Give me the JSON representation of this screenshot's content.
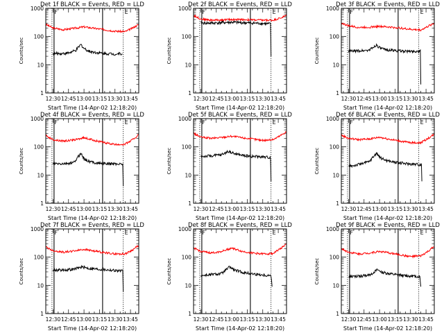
{
  "chart_data": [
    {
      "type": "line",
      "title": "Det 1f BLACK = Events, RED = LLD",
      "xlabel": "Start Time (14-Apr-02 12:18:20)",
      "ylabel": "Counts/sec",
      "xlim": [
        "12:23",
        "13:53"
      ],
      "ylim": [
        1,
        1000
      ],
      "y_scale": "log",
      "x_ticks": [
        "12:30",
        "12:45",
        "13:00",
        "13:15",
        "13:30",
        "13:45"
      ],
      "y_ticks": [
        "1",
        "10",
        "100",
        "1000"
      ],
      "markers": [
        {
          "time": "12:30",
          "label": "F"
        },
        {
          "time": "13:38",
          "label": "E"
        }
      ],
      "series": [
        {
          "color": "#ff0000",
          "x": [
            "12:23",
            "12:30",
            "12:40",
            "12:50",
            "13:00",
            "13:10",
            "13:20",
            "13:30",
            "13:40",
            "13:47",
            "13:53"
          ],
          "y": [
            270,
            200,
            175,
            195,
            220,
            195,
            175,
            155,
            150,
            200,
            270
          ]
        },
        {
          "color": "#000000",
          "x": [
            "12:30",
            "12:38",
            "12:45",
            "12:52",
            "12:57",
            "13:00",
            "13:05",
            "13:12",
            "13:20",
            "13:30",
            "13:37"
          ],
          "y": [
            25,
            25,
            26,
            32,
            52,
            38,
            30,
            27,
            25,
            24,
            25
          ]
        }
      ]
    },
    {
      "type": "line",
      "title": "Det 2f BLACK = Events, RED = LLD",
      "xlabel": "Start Time (14-Apr-02 12:18:20)",
      "ylabel": "Counts/sec",
      "xlim": [
        "12:23",
        "13:53"
      ],
      "ylim": [
        1,
        1000
      ],
      "y_scale": "log",
      "x_ticks": [
        "12:30",
        "12:45",
        "13:00",
        "13:15",
        "13:30",
        "13:45"
      ],
      "y_ticks": [
        "1",
        "10",
        "100",
        "1000"
      ],
      "markers": [
        {
          "time": "12:30",
          "label": "F"
        },
        {
          "time": "13:38",
          "label": "E"
        }
      ],
      "series": [
        {
          "color": "#ff0000",
          "x": [
            "12:23",
            "12:30",
            "12:40",
            "12:50",
            "13:00",
            "13:10",
            "13:20",
            "13:30",
            "13:40",
            "13:47",
            "13:53"
          ],
          "y": [
            560,
            420,
            380,
            390,
            400,
            400,
            390,
            380,
            380,
            450,
            560
          ]
        },
        {
          "color": "#000000",
          "x": [
            "12:30",
            "12:40",
            "12:50",
            "13:00",
            "13:10",
            "13:20",
            "13:30",
            "13:37",
            "13:38"
          ],
          "y": [
            300,
            300,
            310,
            320,
            310,
            300,
            290,
            280,
            20
          ]
        }
      ]
    },
    {
      "type": "line",
      "title": "Det 3f BLACK = Events, RED = LLD",
      "xlabel": "Start Time (14-Apr-02 12:18:20)",
      "ylabel": "Counts/sec",
      "xlim": [
        "12:23",
        "13:53"
      ],
      "ylim": [
        1,
        1000
      ],
      "y_scale": "log",
      "x_ticks": [
        "12:30",
        "12:45",
        "13:00",
        "13:15",
        "13:30",
        "13:45"
      ],
      "y_ticks": [
        "1",
        "10",
        "100",
        "1000"
      ],
      "markers": [
        {
          "time": "12:30",
          "label": "F"
        },
        {
          "time": "13:38",
          "label": "E"
        }
      ],
      "series": [
        {
          "color": "#ff0000",
          "x": [
            "12:23",
            "12:30",
            "12:40",
            "12:50",
            "13:00",
            "13:10",
            "13:20",
            "13:30",
            "13:40",
            "13:47",
            "13:53"
          ],
          "y": [
            300,
            240,
            210,
            215,
            230,
            215,
            200,
            180,
            170,
            230,
            300
          ]
        },
        {
          "color": "#000000",
          "x": [
            "12:30",
            "12:40",
            "12:50",
            "12:57",
            "13:00",
            "13:05",
            "13:15",
            "13:25",
            "13:35",
            "13:39",
            "13:40"
          ],
          "y": [
            30,
            31,
            33,
            50,
            40,
            34,
            32,
            30,
            30,
            30,
            2
          ]
        }
      ]
    },
    {
      "type": "line",
      "title": "Det 4f BLACK = Events, RED = LLD",
      "xlabel": "Start Time (14-Apr-02 12:18:20)",
      "ylabel": "Counts/sec",
      "xlim": [
        "12:23",
        "13:53"
      ],
      "ylim": [
        1,
        1000
      ],
      "y_scale": "log",
      "x_ticks": [
        "12:30",
        "12:45",
        "13:00",
        "13:15",
        "13:30",
        "13:45"
      ],
      "y_ticks": [
        "1",
        "10",
        "100",
        "1000"
      ],
      "markers": [
        {
          "time": "12:30",
          "label": "F"
        },
        {
          "time": "13:38",
          "label": "E"
        }
      ],
      "series": [
        {
          "color": "#ff0000",
          "x": [
            "12:23",
            "12:30",
            "12:40",
            "12:50",
            "13:00",
            "13:10",
            "13:20",
            "13:30",
            "13:40",
            "13:47",
            "13:53"
          ],
          "y": [
            250,
            180,
            160,
            175,
            210,
            170,
            140,
            120,
            125,
            180,
            270
          ]
        },
        {
          "color": "#000000",
          "x": [
            "12:30",
            "12:40",
            "12:50",
            "12:57",
            "13:00",
            "13:05",
            "13:15",
            "13:25",
            "13:35",
            "13:37",
            "13:38"
          ],
          "y": [
            25,
            25,
            27,
            60,
            38,
            30,
            26,
            25,
            25,
            25,
            4
          ]
        }
      ]
    },
    {
      "type": "line",
      "title": "Det 5f BLACK = Events, RED = LLD",
      "xlabel": "Start Time (14-Apr-02 12:18:20)",
      "ylabel": "Counts/sec",
      "xlim": [
        "12:23",
        "13:53"
      ],
      "ylim": [
        1,
        1000
      ],
      "y_scale": "log",
      "x_ticks": [
        "12:30",
        "12:45",
        "13:00",
        "13:15",
        "13:30",
        "13:45"
      ],
      "y_ticks": [
        "1",
        "10",
        "100",
        "1000"
      ],
      "markers": [
        {
          "time": "12:30",
          "label": "F"
        },
        {
          "time": "13:38",
          "label": "E"
        }
      ],
      "series": [
        {
          "color": "#ff0000",
          "x": [
            "12:23",
            "12:30",
            "12:40",
            "12:50",
            "13:00",
            "13:10",
            "13:20",
            "13:30",
            "13:40",
            "13:47",
            "13:53"
          ],
          "y": [
            300,
            220,
            200,
            215,
            240,
            210,
            190,
            170,
            180,
            250,
            350
          ]
        },
        {
          "color": "#000000",
          "x": [
            "12:30",
            "12:40",
            "12:50",
            "12:57",
            "13:02",
            "13:10",
            "13:20",
            "13:30",
            "13:37",
            "13:38"
          ],
          "y": [
            45,
            48,
            52,
            70,
            58,
            50,
            46,
            44,
            42,
            6
          ]
        }
      ]
    },
    {
      "type": "line",
      "title": "Det 6f BLACK = Events, RED = LLD",
      "xlabel": "Start Time (14-Apr-02 12:18:20)",
      "ylabel": "Counts/sec",
      "xlim": [
        "12:23",
        "13:53"
      ],
      "ylim": [
        1,
        1000
      ],
      "y_scale": "log",
      "x_ticks": [
        "12:30",
        "12:45",
        "13:00",
        "13:15",
        "13:30",
        "13:45"
      ],
      "y_ticks": [
        "1",
        "10",
        "100",
        "1000"
      ],
      "markers": [
        {
          "time": "12:30",
          "label": "F"
        },
        {
          "time": "13:38",
          "label": "E"
        }
      ],
      "series": [
        {
          "color": "#ff0000",
          "x": [
            "12:23",
            "12:30",
            "12:40",
            "12:50",
            "13:00",
            "13:10",
            "13:20",
            "13:30",
            "13:40",
            "13:47",
            "13:53"
          ],
          "y": [
            260,
            200,
            180,
            190,
            220,
            185,
            160,
            140,
            140,
            200,
            280
          ]
        },
        {
          "color": "#000000",
          "x": [
            "12:30",
            "12:40",
            "12:50",
            "12:57",
            "13:01",
            "13:08",
            "13:18",
            "13:28",
            "13:37",
            "13:40",
            "13:41"
          ],
          "y": [
            20,
            24,
            30,
            60,
            40,
            32,
            27,
            25,
            24,
            23,
            6
          ]
        }
      ]
    },
    {
      "type": "line",
      "title": "Det 7f BLACK = Events, RED = LLD",
      "xlabel": "Start Time (14-Apr-02 12:18:20)",
      "ylabel": "Counts/sec",
      "xlim": [
        "12:23",
        "13:53"
      ],
      "ylim": [
        1,
        1000
      ],
      "y_scale": "log",
      "x_ticks": [
        "12:30",
        "12:45",
        "13:00",
        "13:15",
        "13:30",
        "13:45"
      ],
      "y_ticks": [
        "1",
        "10",
        "100",
        "1000"
      ],
      "markers": [
        {
          "time": "12:30",
          "label": "F"
        },
        {
          "time": "13:38",
          "label": "E"
        }
      ],
      "series": [
        {
          "color": "#ff0000",
          "x": [
            "12:23",
            "12:30",
            "12:40",
            "12:50",
            "13:00",
            "13:10",
            "13:20",
            "13:30",
            "13:40",
            "13:47",
            "13:53"
          ],
          "y": [
            230,
            170,
            150,
            165,
            190,
            165,
            145,
            130,
            130,
            180,
            260
          ]
        },
        {
          "color": "#000000",
          "x": [
            "12:30",
            "12:40",
            "12:50",
            "12:58",
            "13:05",
            "13:15",
            "13:25",
            "13:33",
            "13:37",
            "13:38"
          ],
          "y": [
            35,
            35,
            37,
            45,
            40,
            37,
            35,
            33,
            32,
            6
          ]
        }
      ]
    },
    {
      "type": "line",
      "title": "Det 8f BLACK = Events, RED = LLD",
      "xlabel": "Start Time (14-Apr-02 12:18:20)",
      "ylabel": "Counts/sec",
      "xlim": [
        "12:23",
        "13:53"
      ],
      "ylim": [
        1,
        1000
      ],
      "y_scale": "log",
      "x_ticks": [
        "12:30",
        "12:45",
        "13:00",
        "13:15",
        "13:30",
        "13:45"
      ],
      "y_ticks": [
        "1",
        "10",
        "100",
        "1000"
      ],
      "markers": [
        {
          "time": "12:30",
          "label": "F"
        },
        {
          "time": "13:38",
          "label": "E"
        }
      ],
      "series": [
        {
          "color": "#ff0000",
          "x": [
            "12:23",
            "12:30",
            "12:40",
            "12:50",
            "13:00",
            "13:10",
            "13:20",
            "13:30",
            "13:40",
            "13:47",
            "13:53"
          ],
          "y": [
            210,
            160,
            140,
            160,
            210,
            160,
            140,
            130,
            135,
            200,
            290
          ]
        },
        {
          "color": "#000000",
          "x": [
            "12:30",
            "12:40",
            "12:50",
            "12:58",
            "13:03",
            "13:12",
            "13:22",
            "13:32",
            "13:38",
            "13:39"
          ],
          "y": [
            22,
            24,
            26,
            45,
            34,
            28,
            25,
            23,
            22,
            9
          ]
        }
      ]
    },
    {
      "type": "line",
      "title": "Det 9f BLACK = Events, RED = LLD",
      "xlabel": "Start Time (14-Apr-02 12:18:20)",
      "ylabel": "Counts/sec",
      "xlim": [
        "12:23",
        "13:53"
      ],
      "ylim": [
        1,
        1000
      ],
      "y_scale": "log",
      "x_ticks": [
        "12:30",
        "12:45",
        "13:00",
        "13:15",
        "13:30",
        "13:45"
      ],
      "y_ticks": [
        "1",
        "10",
        "100",
        "1000"
      ],
      "markers": [
        {
          "time": "12:30",
          "label": "F"
        },
        {
          "time": "13:38",
          "label": "E"
        }
      ],
      "series": [
        {
          "color": "#ff0000",
          "x": [
            "12:23",
            "12:30",
            "12:40",
            "12:50",
            "13:00",
            "13:10",
            "13:20",
            "13:30",
            "13:40",
            "13:47",
            "13:53"
          ],
          "y": [
            200,
            150,
            130,
            140,
            160,
            140,
            120,
            105,
            110,
            160,
            240
          ]
        },
        {
          "color": "#000000",
          "x": [
            "12:30",
            "12:40",
            "12:50",
            "12:58",
            "13:04",
            "13:14",
            "13:24",
            "13:34",
            "13:39",
            "13:40"
          ],
          "y": [
            20,
            21,
            23,
            35,
            28,
            24,
            22,
            21,
            20,
            9
          ]
        }
      ]
    }
  ]
}
